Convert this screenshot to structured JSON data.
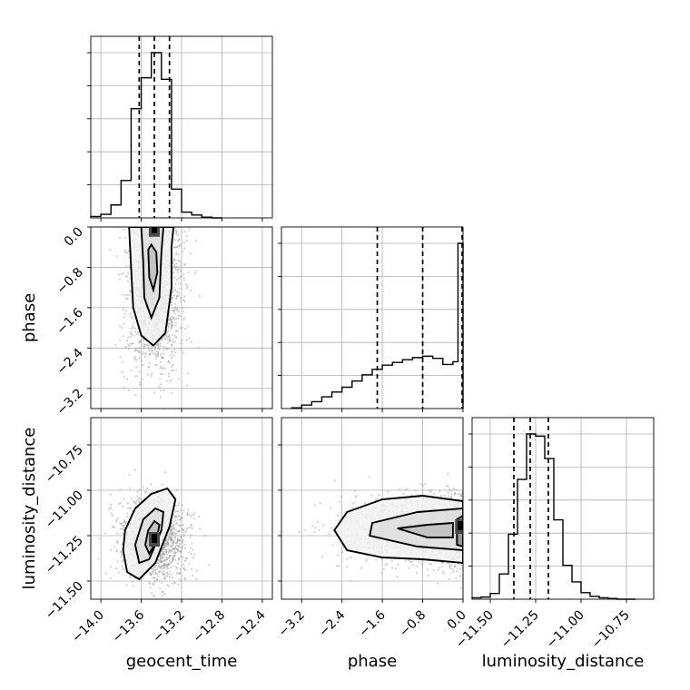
{
  "chart_data": {
    "type": "corner",
    "parameters": [
      "geocent_time",
      "phase",
      "luminosity_distance"
    ],
    "axis_labels": {
      "x": [
        "geocent_time",
        "phase",
        "luminosity_distance"
      ],
      "y": [
        "",
        "phase",
        "luminosity_distance"
      ]
    },
    "grid": true,
    "ticks": {
      "geocent_time": [
        -14.0,
        -13.6,
        -13.2,
        -12.8,
        -12.4
      ],
      "phase": [
        -3.2,
        -2.4,
        -1.6,
        -0.8,
        0.0
      ],
      "luminosity_distance": [
        -11.5,
        -11.25,
        -11.0,
        -10.75
      ]
    },
    "tick_labels": {
      "geocent_time": [
        "−14.0",
        "−13.6",
        "−13.2",
        "−12.8",
        "−12.4"
      ],
      "phase": [
        "−3.2",
        "−2.4",
        "−1.6",
        "−0.8",
        "0.0"
      ],
      "luminosity_distance": [
        "−11.50",
        "−11.25",
        "−11.00",
        "−10.75"
      ]
    },
    "ranges": {
      "geocent_time": [
        -14.1,
        -12.3
      ],
      "phase": [
        -3.6,
        0.0
      ],
      "luminosity_distance": [
        -11.6,
        -10.6
      ]
    },
    "histograms": {
      "geocent_time": {
        "edges": [
          -14.1,
          -14.0,
          -13.9,
          -13.8,
          -13.7,
          -13.6,
          -13.5,
          -13.4,
          -13.3,
          -13.2,
          -13.1,
          -13.0,
          -12.9,
          -12.8
        ],
        "counts": [
          2,
          5,
          18,
          52,
          152,
          195,
          230,
          193,
          40,
          8,
          4,
          1,
          0
        ],
        "quantiles": [
          -13.62,
          -13.47,
          -13.32
        ]
      },
      "phase": {
        "edges": [
          -3.4,
          -3.2,
          -3.0,
          -2.8,
          -2.6,
          -2.4,
          -2.2,
          -2.0,
          -1.8,
          -1.6,
          -1.4,
          -1.2,
          -1.0,
          -0.8,
          -0.6,
          -0.4,
          -0.2,
          -0.1,
          0.0
        ],
        "counts": [
          1,
          5,
          10,
          17,
          24,
          31,
          40,
          49,
          57,
          63,
          67,
          71,
          74,
          76,
          73,
          64,
          68,
          240
        ],
        "quantiles": [
          -1.7,
          -0.8,
          0.0
        ]
      },
      "luminosity_distance": {
        "edges": [
          -11.6,
          -11.55,
          -11.5,
          -11.45,
          -11.4,
          -11.35,
          -11.3,
          -11.25,
          -11.2,
          -11.15,
          -11.1,
          -11.05,
          -11.0,
          -10.95,
          -10.9,
          -10.85,
          -10.8,
          -10.75,
          -10.7
        ],
        "counts": [
          2,
          3,
          8,
          35,
          90,
          166,
          229,
          226,
          195,
          110,
          47,
          24,
          9,
          4,
          2,
          1,
          0,
          0
        ],
        "quantiles": [
          -11.37,
          -11.28,
          -11.18
        ]
      }
    },
    "pairs": [
      {
        "x": "geocent_time",
        "y": "phase",
        "center": [
          -13.47,
          -1.3
        ],
        "spread": [
          0.14,
          0.8
        ],
        "density_peaks": [
          [
            -13.47,
            -0.05
          ]
        ],
        "contours": [
          [
            [
              -13.72,
              0.0
            ],
            [
              -13.7,
              -0.8
            ],
            [
              -13.68,
              -1.6
            ],
            [
              -13.6,
              -2.15
            ],
            [
              -13.48,
              -2.35
            ],
            [
              -13.36,
              -2.1
            ],
            [
              -13.3,
              -1.2
            ],
            [
              -13.3,
              -0.4
            ],
            [
              -13.28,
              0.0
            ]
          ],
          [
            [
              -13.6,
              0.0
            ],
            [
              -13.58,
              -0.7
            ],
            [
              -13.57,
              -1.4
            ],
            [
              -13.5,
              -1.8
            ],
            [
              -13.42,
              -1.4
            ],
            [
              -13.4,
              -0.5
            ],
            [
              -13.38,
              0.0
            ]
          ],
          [
            [
              -13.53,
              -0.45
            ],
            [
              -13.52,
              -1.0
            ],
            [
              -13.48,
              -1.25
            ],
            [
              -13.44,
              -0.9
            ],
            [
              -13.45,
              -0.5
            ],
            [
              -13.5,
              -0.35
            ]
          ]
        ]
      },
      {
        "x": "geocent_time",
        "y": "luminosity_distance",
        "center": [
          -13.47,
          -11.27
        ],
        "spread": [
          0.16,
          0.11
        ],
        "density_peaks": [
          [
            -13.47,
            -11.27
          ]
        ],
        "contours": [
          [
            [
              -13.78,
              -11.33
            ],
            [
              -13.74,
              -11.45
            ],
            [
              -13.62,
              -11.49
            ],
            [
              -13.46,
              -11.4
            ],
            [
              -13.32,
              -11.2
            ],
            [
              -13.26,
              -11.05
            ],
            [
              -13.34,
              -10.99
            ],
            [
              -13.5,
              -11.02
            ],
            [
              -13.66,
              -11.1
            ],
            [
              -13.76,
              -11.22
            ]
          ],
          [
            [
              -13.66,
              -11.3
            ],
            [
              -13.62,
              -11.4
            ],
            [
              -13.52,
              -11.38
            ],
            [
              -13.4,
              -11.22
            ],
            [
              -13.38,
              -11.12
            ],
            [
              -13.46,
              -11.1
            ],
            [
              -13.58,
              -11.16
            ]
          ],
          [
            [
              -13.56,
              -11.3
            ],
            [
              -13.52,
              -11.35
            ],
            [
              -13.45,
              -11.28
            ],
            [
              -13.42,
              -11.19
            ],
            [
              -13.47,
              -11.17
            ],
            [
              -13.53,
              -11.22
            ]
          ]
        ]
      },
      {
        "x": "phase",
        "y": "luminosity_distance",
        "center": [
          -0.5,
          -11.22
        ],
        "spread": [
          0.9,
          0.1
        ],
        "density_peaks": [
          [
            -0.05,
            -11.2
          ]
        ],
        "contours": [
          [
            [
              0.0,
              -11.06
            ],
            [
              -0.8,
              -11.03
            ],
            [
              -1.6,
              -11.05
            ],
            [
              -2.3,
              -11.12
            ],
            [
              -2.55,
              -11.22
            ],
            [
              -2.3,
              -11.33
            ],
            [
              -1.6,
              -11.37
            ],
            [
              -0.8,
              -11.38
            ],
            [
              0.0,
              -11.4
            ]
          ],
          [
            [
              0.0,
              -11.1
            ],
            [
              -0.9,
              -11.12
            ],
            [
              -1.8,
              -11.18
            ],
            [
              -1.85,
              -11.25
            ],
            [
              -0.9,
              -11.31
            ],
            [
              0.0,
              -11.33
            ]
          ],
          [
            [
              -0.2,
              -11.18
            ],
            [
              -0.7,
              -11.19
            ],
            [
              -1.3,
              -11.21
            ],
            [
              -0.7,
              -11.26
            ],
            [
              -0.2,
              -11.26
            ]
          ],
          [
            [
              0.0,
              -11.14
            ],
            [
              -0.12,
              -11.16
            ],
            [
              -0.12,
              -11.3
            ],
            [
              0.0,
              -11.31
            ]
          ]
        ]
      }
    ]
  }
}
